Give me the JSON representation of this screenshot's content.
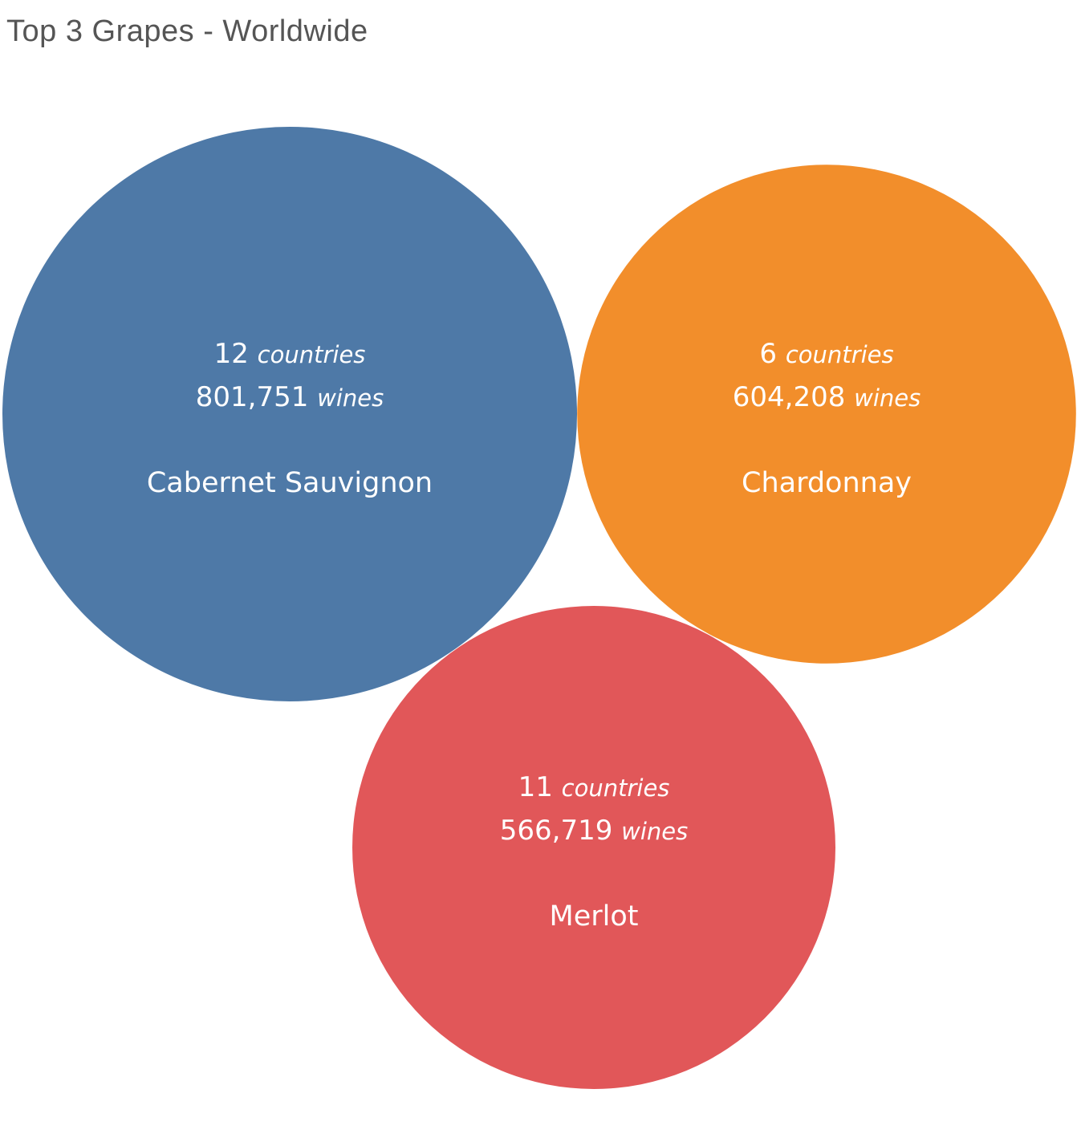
{
  "chart_data": {
    "type": "bubble",
    "title": "Top 3 Grapes - Worldwide",
    "size_measure": "wines",
    "bubbles": [
      {
        "name": "Cabernet Sauvignon",
        "countries": 12,
        "countries_text": "12",
        "wines": 801751,
        "wines_text": "801,751",
        "color": "#4e79a7"
      },
      {
        "name": "Chardonnay",
        "countries": 6,
        "countries_text": "6",
        "wines": 604208,
        "wines_text": "604,208",
        "color": "#f28e2b"
      },
      {
        "name": "Merlot",
        "countries": 11,
        "countries_text": "11",
        "wines": 566719,
        "wines_text": "566,719",
        "color": "#e15759"
      }
    ],
    "units": {
      "countries": "countries",
      "wines": "wines"
    }
  }
}
